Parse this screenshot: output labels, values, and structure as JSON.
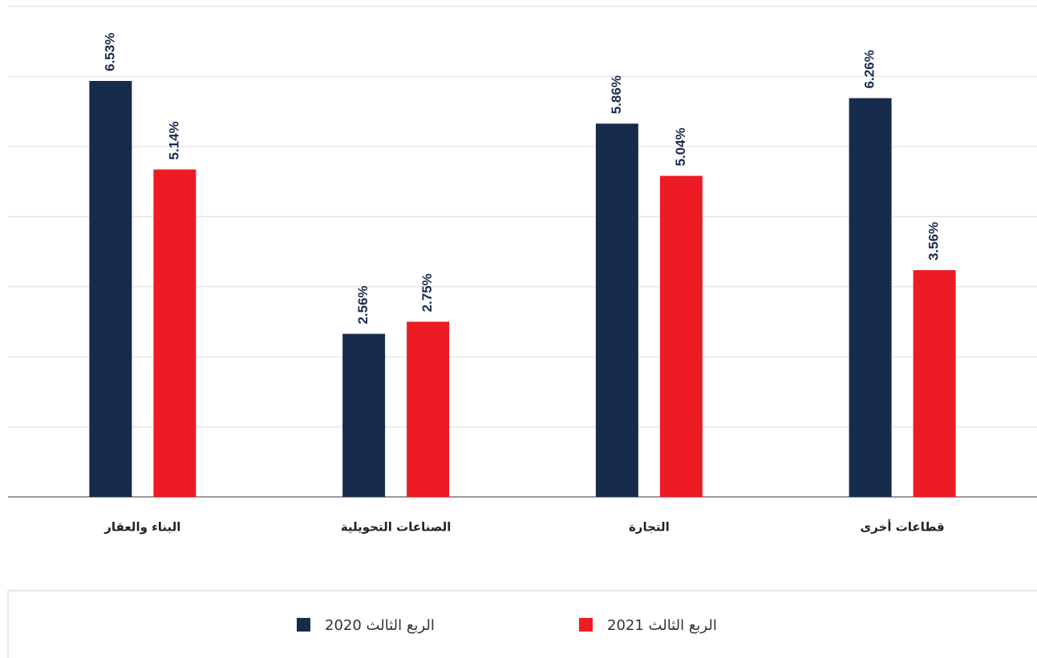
{
  "chart_data": {
    "type": "bar",
    "categories": [
      "البناء والعقار",
      "الصناعات التحويلية",
      "التجارة",
      "قطاعات أخرى"
    ],
    "series": [
      {
        "name": "الربع الثالث 2020",
        "color": "#172b4d",
        "values": [
          6.53,
          2.56,
          5.86,
          6.26
        ],
        "value_labels": [
          "6.53%",
          "2.56%",
          "5.86%",
          "6.26%"
        ]
      },
      {
        "name": "الربع الثالث 2021",
        "color": "#ed1c24",
        "values": [
          5.14,
          2.75,
          5.04,
          3.56
        ],
        "value_labels": [
          "5.14%",
          "2.75%",
          "5.04%",
          "3.56%"
        ]
      }
    ],
    "ylim": [
      0,
      7.7
    ],
    "yticks": [
      0,
      1.1,
      2.2,
      3.3,
      4.4,
      5.5,
      6.6,
      7.7
    ],
    "grid": true
  }
}
